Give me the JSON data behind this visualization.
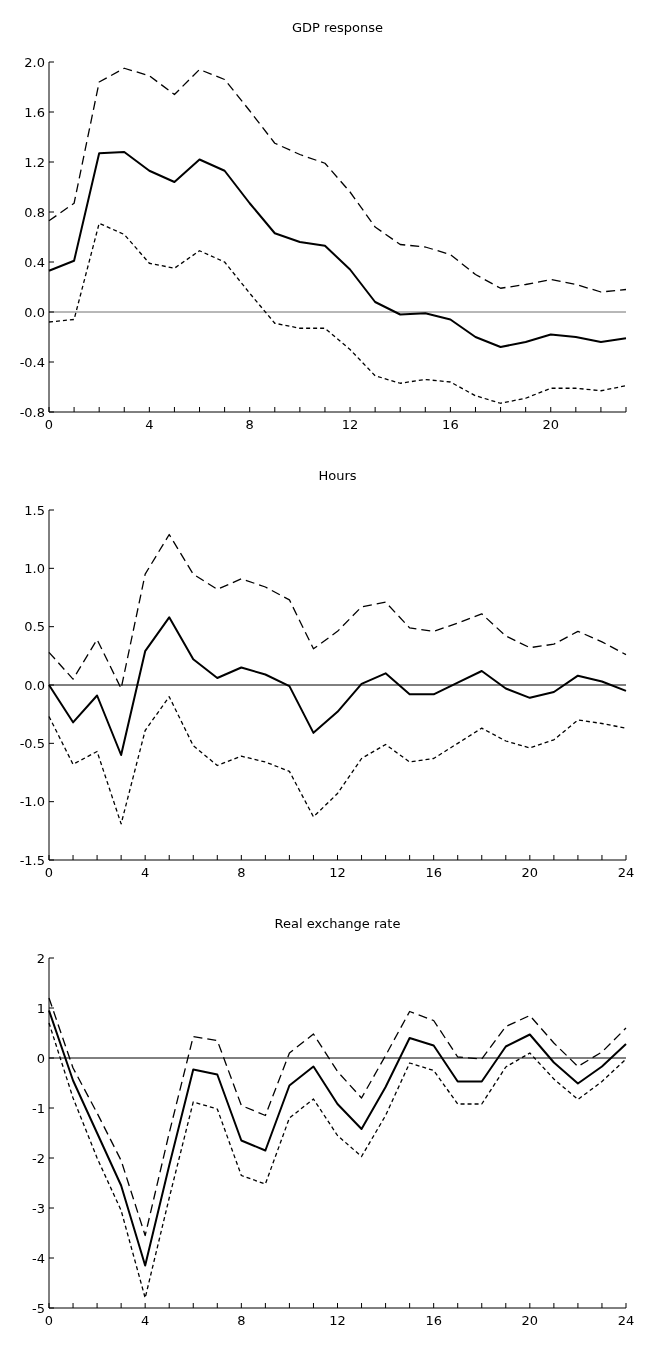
{
  "chart_data": [
    {
      "type": "line",
      "title": "GDP response",
      "x": [
        0,
        1,
        2,
        3,
        4,
        5,
        6,
        7,
        8,
        9,
        10,
        11,
        12,
        13,
        14,
        15,
        16,
        17,
        18,
        19,
        20,
        21,
        22,
        23
      ],
      "series": [
        {
          "color": "#000000",
          "line_style": "solid",
          "values": [
            0.33,
            0.41,
            1.27,
            1.28,
            1.13,
            1.04,
            1.22,
            1.13,
            0.87,
            0.63,
            0.56,
            0.53,
            0.34,
            0.08,
            -0.02,
            -0.01,
            -0.06,
            -0.2,
            -0.28,
            -0.24,
            -0.18,
            -0.2,
            -0.24,
            -0.21
          ]
        },
        {
          "color": "#000000",
          "line_style": "dashed",
          "values": [
            0.73,
            0.87,
            1.84,
            1.95,
            1.89,
            1.74,
            1.94,
            1.86,
            1.61,
            1.35,
            1.26,
            1.19,
            0.96,
            0.68,
            0.54,
            0.52,
            0.46,
            0.3,
            0.19,
            0.22,
            0.26,
            0.22,
            0.16,
            0.18
          ]
        },
        {
          "color": "#000000",
          "line_style": "dotted",
          "values": [
            -0.08,
            -0.06,
            0.71,
            0.62,
            0.39,
            0.35,
            0.49,
            0.4,
            0.15,
            -0.09,
            -0.13,
            -0.13,
            -0.3,
            -0.51,
            -0.57,
            -0.54,
            -0.56,
            -0.67,
            -0.73,
            -0.69,
            -0.61,
            -0.61,
            -0.63,
            -0.59
          ]
        }
      ],
      "xlim": [
        0,
        23
      ],
      "xticks": [
        0,
        {
          "value": 1,
          "label": null
        },
        {
          "value": 2,
          "label": null
        },
        {
          "value": 3,
          "label": null
        },
        4,
        {
          "value": 5,
          "label": null
        },
        {
          "value": 6,
          "label": null
        },
        {
          "value": 7,
          "label": null
        },
        8,
        {
          "value": 9,
          "label": null
        },
        {
          "value": 10,
          "label": null
        },
        {
          "value": 11,
          "label": null
        },
        12,
        {
          "value": 13,
          "label": null
        },
        {
          "value": 14,
          "label": null
        },
        {
          "value": 15,
          "label": null
        },
        16,
        {
          "value": 17,
          "label": null
        },
        {
          "value": 18,
          "label": null
        },
        {
          "value": 19,
          "label": null
        },
        20,
        {
          "value": 21,
          "label": null
        },
        {
          "value": 22,
          "label": null
        },
        {
          "value": 23,
          "label": null
        }
      ],
      "ylim": [
        -0.8,
        2
      ],
      "yticks": [
        {
          "value": -0.8,
          "label": "-0.8"
        },
        {
          "value": -0.4,
          "label": "-0.4"
        },
        {
          "value": 0,
          "label": "0.0"
        },
        {
          "value": 0.4,
          "label": "0.4"
        },
        {
          "value": 0.8,
          "label": "0.8"
        },
        {
          "value": 1.2,
          "label": "1.2"
        },
        {
          "value": 1.6,
          "label": "1.6"
        },
        {
          "value": 2,
          "label": "2.0"
        }
      ],
      "ref_lines": [
        {
          "axis": "y",
          "value": 0,
          "color": "#707070"
        }
      ]
    },
    {
      "type": "line",
      "title": "Hours",
      "x": [
        0,
        1,
        2,
        3,
        4,
        5,
        6,
        7,
        8,
        9,
        10,
        11,
        12,
        13,
        14,
        15,
        16,
        17,
        18,
        19,
        20,
        21,
        22,
        23,
        24
      ],
      "series": [
        {
          "color": "#000000",
          "line_style": "solid",
          "values": [
            0,
            -0.32,
            -0.09,
            -0.6,
            0.29,
            0.58,
            0.22,
            0.06,
            0.15,
            0.09,
            -0.01,
            -0.41,
            -0.23,
            0.01,
            0.1,
            -0.08,
            -0.08,
            0.02,
            0.12,
            -0.03,
            -0.11,
            -0.06,
            0.08,
            0.03,
            -0.05
          ]
        },
        {
          "color": "#000000",
          "line_style": "dashed",
          "values": [
            0.28,
            0.05,
            0.39,
            -0.03,
            0.95,
            1.29,
            0.95,
            0.82,
            0.91,
            0.84,
            0.73,
            0.31,
            0.46,
            0.67,
            0.71,
            0.49,
            0.46,
            0.53,
            0.61,
            0.42,
            0.32,
            0.35,
            0.46,
            0.37,
            0.26
          ]
        },
        {
          "color": "#000000",
          "line_style": "dotted",
          "values": [
            -0.27,
            -0.68,
            -0.57,
            -1.19,
            -0.39,
            -0.1,
            -0.52,
            -0.69,
            -0.61,
            -0.66,
            -0.74,
            -1.13,
            -0.93,
            -0.63,
            -0.51,
            -0.66,
            -0.63,
            -0.5,
            -0.37,
            -0.48,
            -0.54,
            -0.47,
            -0.3,
            -0.33,
            -0.37
          ]
        }
      ],
      "xlim": [
        0,
        24
      ],
      "xticks": [
        0,
        {
          "value": 1,
          "label": null
        },
        {
          "value": 2,
          "label": null
        },
        {
          "value": 3,
          "label": null
        },
        4,
        {
          "value": 5,
          "label": null
        },
        {
          "value": 6,
          "label": null
        },
        {
          "value": 7,
          "label": null
        },
        8,
        {
          "value": 9,
          "label": null
        },
        {
          "value": 10,
          "label": null
        },
        {
          "value": 11,
          "label": null
        },
        12,
        {
          "value": 13,
          "label": null
        },
        {
          "value": 14,
          "label": null
        },
        {
          "value": 15,
          "label": null
        },
        16,
        {
          "value": 17,
          "label": null
        },
        {
          "value": 18,
          "label": null
        },
        {
          "value": 19,
          "label": null
        },
        20,
        {
          "value": 21,
          "label": null
        },
        {
          "value": 22,
          "label": null
        },
        {
          "value": 23,
          "label": null
        },
        24
      ],
      "ylim": [
        -1.5,
        1.5
      ],
      "yticks": [
        {
          "value": -1.5,
          "label": "-1.5"
        },
        {
          "value": -1,
          "label": "-1.0"
        },
        {
          "value": -0.5,
          "label": "-0.5"
        },
        {
          "value": 0,
          "label": "0.0"
        },
        0.5,
        {
          "value": 1,
          "label": "1.0"
        },
        1.5
      ],
      "ref_lines": [
        {
          "axis": "y",
          "value": 0,
          "color": "#000000"
        }
      ]
    },
    {
      "type": "line",
      "title": "Real exchange rate",
      "x": [
        0,
        1,
        2,
        3,
        4,
        5,
        6,
        7,
        8,
        9,
        10,
        11,
        12,
        13,
        14,
        15,
        16,
        17,
        18,
        19,
        20,
        21,
        22,
        23,
        24
      ],
      "series": [
        {
          "color": "#000000",
          "line_style": "solid",
          "values": [
            0.95,
            -0.45,
            -1.5,
            -2.55,
            -4.15,
            -2.15,
            -0.23,
            -0.33,
            -1.65,
            -1.85,
            -0.55,
            -0.17,
            -0.92,
            -1.42,
            -0.58,
            0.4,
            0.25,
            -0.47,
            -0.47,
            0.23,
            0.47,
            -0.09,
            -0.51,
            -0.17,
            0.28
          ]
        },
        {
          "color": "#000000",
          "line_style": "dashed",
          "values": [
            1.2,
            -0.2,
            -1.1,
            -2.05,
            -3.55,
            -1.5,
            0.43,
            0.35,
            -0.95,
            -1.15,
            0.1,
            0.48,
            -0.27,
            -0.8,
            0.05,
            0.93,
            0.75,
            0.02,
            -0.02,
            0.63,
            0.85,
            0.3,
            -0.17,
            0.12,
            0.6
          ]
        },
        {
          "color": "#000000",
          "line_style": "dotted",
          "values": [
            0.7,
            -0.8,
            -2.0,
            -3.05,
            -4.8,
            -2.8,
            -0.88,
            -1.02,
            -2.35,
            -2.52,
            -1.2,
            -0.82,
            -1.55,
            -1.97,
            -1.15,
            -0.1,
            -0.25,
            -0.92,
            -0.92,
            -0.18,
            0.1,
            -0.42,
            -0.83,
            -0.47,
            -0.02
          ]
        }
      ],
      "xlim": [
        0,
        24
      ],
      "xticks": [
        0,
        {
          "value": 1,
          "label": null
        },
        {
          "value": 2,
          "label": null
        },
        {
          "value": 3,
          "label": null
        },
        4,
        {
          "value": 5,
          "label": null
        },
        {
          "value": 6,
          "label": null
        },
        {
          "value": 7,
          "label": null
        },
        8,
        {
          "value": 9,
          "label": null
        },
        {
          "value": 10,
          "label": null
        },
        {
          "value": 11,
          "label": null
        },
        12,
        {
          "value": 13,
          "label": null
        },
        {
          "value": 14,
          "label": null
        },
        {
          "value": 15,
          "label": null
        },
        16,
        {
          "value": 17,
          "label": null
        },
        {
          "value": 18,
          "label": null
        },
        {
          "value": 19,
          "label": null
        },
        20,
        {
          "value": 21,
          "label": null
        },
        {
          "value": 22,
          "label": null
        },
        {
          "value": 23,
          "label": null
        },
        24
      ],
      "ylim": [
        -5,
        2
      ],
      "yticks": [
        -5,
        -4,
        -3,
        -2,
        -1,
        0,
        1,
        2
      ],
      "ref_lines": [
        {
          "axis": "y",
          "value": 0,
          "color": "#000000"
        }
      ]
    }
  ]
}
